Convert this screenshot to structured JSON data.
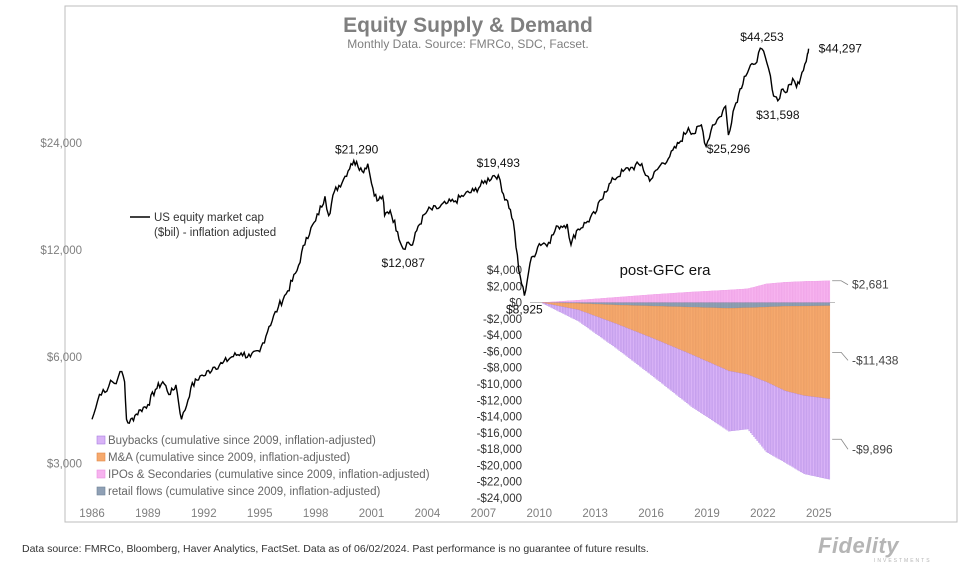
{
  "chart_data": [
    {
      "type": "line",
      "title": "Equity Supply & Demand",
      "subtitle": "Monthly Data. Source: FMRCo, SDC, Facset.",
      "yscale": "log",
      "ylim": [
        2400,
        52000
      ],
      "xlim": [
        1986,
        2025.6
      ],
      "x_ticks": [
        "1986",
        "1989",
        "1992",
        "1995",
        "1998",
        "2001",
        "2004",
        "2007",
        "2010",
        "2013",
        "2016",
        "2019",
        "2022",
        "2025"
      ],
      "y_ticks": [
        {
          "value": 3000,
          "label": "$3,000"
        },
        {
          "value": 6000,
          "label": "$6,000"
        },
        {
          "value": 12000,
          "label": "$12,000"
        },
        {
          "value": 24000,
          "label": "$24,000"
        }
      ],
      "legend_position": "left",
      "series": [
        {
          "name": "US equity market cap ($bil) - inflation adjusted",
          "name_lines": [
            "US equity market cap",
            "($bil) - inflation adjusted"
          ],
          "color": "#000000",
          "points": [
            [
              1986.0,
              4000
            ],
            [
              1986.2,
              4300
            ],
            [
              1986.4,
              4700
            ],
            [
              1986.6,
              4850
            ],
            [
              1986.8,
              4800
            ],
            [
              1987.0,
              5150
            ],
            [
              1987.2,
              5050
            ],
            [
              1987.4,
              5250
            ],
            [
              1987.6,
              5450
            ],
            [
              1987.75,
              5100
            ],
            [
              1987.85,
              4000
            ],
            [
              1988.0,
              3900
            ],
            [
              1988.3,
              4100
            ],
            [
              1988.6,
              4250
            ],
            [
              1989.0,
              4400
            ],
            [
              1989.4,
              4850
            ],
            [
              1989.8,
              5100
            ],
            [
              1990.2,
              4700
            ],
            [
              1990.5,
              5000
            ],
            [
              1990.8,
              4000
            ],
            [
              1991.0,
              4250
            ],
            [
              1991.3,
              4900
            ],
            [
              1991.8,
              5300
            ],
            [
              1992.0,
              5300
            ],
            [
              1992.5,
              5600
            ],
            [
              1993.0,
              5750
            ],
            [
              1993.5,
              6000
            ],
            [
              1994.0,
              6150
            ],
            [
              1994.5,
              6000
            ],
            [
              1995.0,
              6200
            ],
            [
              1995.5,
              7300
            ],
            [
              1996.0,
              8300
            ],
            [
              1996.5,
              9200
            ],
            [
              1997.0,
              10500
            ],
            [
              1997.5,
              13000
            ],
            [
              1998.0,
              14500
            ],
            [
              1998.5,
              17000
            ],
            [
              1998.7,
              15000
            ],
            [
              1999.0,
              17500
            ],
            [
              1999.5,
              19000
            ],
            [
              1999.9,
              21000
            ],
            [
              2000.2,
              21290
            ],
            [
              2000.5,
              20000
            ],
            [
              2000.8,
              21000
            ],
            [
              2001.0,
              18500
            ],
            [
              2001.3,
              16500
            ],
            [
              2001.6,
              17000
            ],
            [
              2001.7,
              15000
            ],
            [
              2002.0,
              15500
            ],
            [
              2002.4,
              13500
            ],
            [
              2002.7,
              12087
            ],
            [
              2002.9,
              12600
            ],
            [
              2003.2,
              12400
            ],
            [
              2003.5,
              14000
            ],
            [
              2004.0,
              15500
            ],
            [
              2004.5,
              15700
            ],
            [
              2005.0,
              16200
            ],
            [
              2005.5,
              16500
            ],
            [
              2006.0,
              17200
            ],
            [
              2006.5,
              17600
            ],
            [
              2007.0,
              18500
            ],
            [
              2007.5,
              19400
            ],
            [
              2007.8,
              19493
            ],
            [
              2008.0,
              17500
            ],
            [
              2008.3,
              16500
            ],
            [
              2008.6,
              14500
            ],
            [
              2008.9,
              10500
            ],
            [
              2009.2,
              8925
            ],
            [
              2009.5,
              11000
            ],
            [
              2010.0,
              12500
            ],
            [
              2010.5,
              12600
            ],
            [
              2011.0,
              14000
            ],
            [
              2011.5,
              14200
            ],
            [
              2011.7,
              12400
            ],
            [
              2012.0,
              13600
            ],
            [
              2012.5,
              14300
            ],
            [
              2013.0,
              15200
            ],
            [
              2013.5,
              17500
            ],
            [
              2014.0,
              19000
            ],
            [
              2014.5,
              20000
            ],
            [
              2015.0,
              20500
            ],
            [
              2015.5,
              21000
            ],
            [
              2015.7,
              19500
            ],
            [
              2016.0,
              19000
            ],
            [
              2016.5,
              20800
            ],
            [
              2017.0,
              22000
            ],
            [
              2017.5,
              24000
            ],
            [
              2018.0,
              26500
            ],
            [
              2018.3,
              25500
            ],
            [
              2018.7,
              27000
            ],
            [
              2018.95,
              23500
            ],
            [
              2019.3,
              27000
            ],
            [
              2019.7,
              28500
            ],
            [
              2020.0,
              30500
            ],
            [
              2020.15,
              25296
            ],
            [
              2020.4,
              29500
            ],
            [
              2020.7,
              33000
            ],
            [
              2021.0,
              37000
            ],
            [
              2021.5,
              40000
            ],
            [
              2021.95,
              44253
            ],
            [
              2022.3,
              39000
            ],
            [
              2022.5,
              34000
            ],
            [
              2022.8,
              31598
            ],
            [
              2023.0,
              34000
            ],
            [
              2023.3,
              33500
            ],
            [
              2023.6,
              36500
            ],
            [
              2023.8,
              34500
            ],
            [
              2024.1,
              38000
            ],
            [
              2024.4,
              43000
            ],
            [
              2024.45,
              44297
            ]
          ],
          "annotations": [
            {
              "x": 2000.2,
              "y": 21290,
              "label": "$21,290",
              "pos": "above"
            },
            {
              "x": 2002.7,
              "y": 12087,
              "label": "$12,087",
              "pos": "below"
            },
            {
              "x": 2007.8,
              "y": 19493,
              "label": "$19,493",
              "pos": "above"
            },
            {
              "x": 2009.2,
              "y": 8925,
              "label": "$8,925",
              "pos": "below"
            },
            {
              "x": 2020.15,
              "y": 25296,
              "label": "$25,296",
              "pos": "below"
            },
            {
              "x": 2021.95,
              "y": 44253,
              "label": "$44,253",
              "pos": "above"
            },
            {
              "x": 2022.8,
              "y": 31598,
              "label": "$31,598",
              "pos": "below"
            },
            {
              "x": 2024.45,
              "y": 44297,
              "label": "$44,297",
              "pos": "right"
            }
          ]
        }
      ]
    },
    {
      "type": "bar",
      "stacked": true,
      "title": "post-GFC era",
      "xlim": [
        2008.4,
        2025.6
      ],
      "ylim": [
        -24000,
        4000
      ],
      "y_ticks": [
        4000,
        2000,
        0,
        -2000,
        -4000,
        -6000,
        -8000,
        -10000,
        -12000,
        -14000,
        -16000,
        -18000,
        -20000,
        -22000,
        -24000
      ],
      "y_tick_labels": [
        "$4,000",
        "$2,000",
        "$0",
        "-$2,000",
        "-$4,000",
        "-$6,000",
        "-$8,000",
        "-$10,000",
        "-$12,000",
        "-$14,000",
        "-$16,000",
        "-$18,000",
        "-$20,000",
        "-$22,000",
        "-$24,000"
      ],
      "x_ticks": [
        "2010",
        "2013",
        "2016",
        "2019",
        "2022",
        "2025"
      ],
      "legend_position": "bottom-left",
      "x_start": 2009.0,
      "x_end": 2024.4,
      "series": [
        {
          "name": "Buybacks (cumulative since 2009, inflation-adjusted)",
          "color": "#d9b3f7",
          "stroke": "#a97fe0",
          "cumulative": [
            [
              2009.0,
              0
            ],
            [
              2011.0,
              -1400
            ],
            [
              2013.0,
              -3000
            ],
            [
              2015.0,
              -4700
            ],
            [
              2017.0,
              -6400
            ],
            [
              2019.0,
              -7400
            ],
            [
              2020.0,
              -6700
            ],
            [
              2021.0,
              -8600
            ],
            [
              2022.0,
              -8800
            ],
            [
              2023.0,
              -9600
            ],
            [
              2024.4,
              -9896
            ]
          ],
          "end_label": "-$9,896"
        },
        {
          "name": "M&A (cumulative since 2009, inflation-adjusted)",
          "color": "#f6a96d",
          "stroke": "#e2894a",
          "cumulative": [
            [
              2009.0,
              0
            ],
            [
              2011.0,
              -800
            ],
            [
              2013.0,
              -2300
            ],
            [
              2015.0,
              -4000
            ],
            [
              2017.0,
              -5800
            ],
            [
              2019.0,
              -7700
            ],
            [
              2020.0,
              -8200
            ],
            [
              2021.0,
              -9200
            ],
            [
              2022.0,
              -10400
            ],
            [
              2023.0,
              -11000
            ],
            [
              2024.4,
              -11438
            ]
          ],
          "end_label": "-$11,438"
        },
        {
          "name": "IPOs & Secondaries (cumulative since 2009, inflation-adjusted)",
          "color": "#f7b3ef",
          "stroke": "#e98fe0",
          "cumulative": [
            [
              2009.0,
              0
            ],
            [
              2011.0,
              300
            ],
            [
              2013.0,
              650
            ],
            [
              2015.0,
              1000
            ],
            [
              2017.0,
              1300
            ],
            [
              2019.0,
              1550
            ],
            [
              2020.0,
              1700
            ],
            [
              2021.0,
              2300
            ],
            [
              2022.0,
              2500
            ],
            [
              2023.0,
              2600
            ],
            [
              2024.4,
              2681
            ]
          ],
          "end_label": "$2,681"
        },
        {
          "name": "retail flows (cumulative since 2009, inflation-adjusted)",
          "color": "#8fa0b5",
          "stroke": "#6f8296",
          "cumulative": [
            [
              2009.0,
              0
            ],
            [
              2011.0,
              -100
            ],
            [
              2013.0,
              -300
            ],
            [
              2016.0,
              -500
            ],
            [
              2019.0,
              -700
            ],
            [
              2020.5,
              -600
            ],
            [
              2022.0,
              -450
            ],
            [
              2024.4,
              -400
            ]
          ]
        }
      ]
    }
  ],
  "footer": {
    "disclaimer": "Data source: FMRCo, Bloomberg, Haver Analytics, FactSet. Data as of 06/02/2024. Past performance is no guarantee of future results.",
    "logo_text": "Fidelity",
    "logo_subtext": "INVESTMENTS"
  },
  "colors": {
    "frame": "#bdbdbd",
    "title": "#7f7f7f",
    "tick": "#7f7f7f"
  }
}
